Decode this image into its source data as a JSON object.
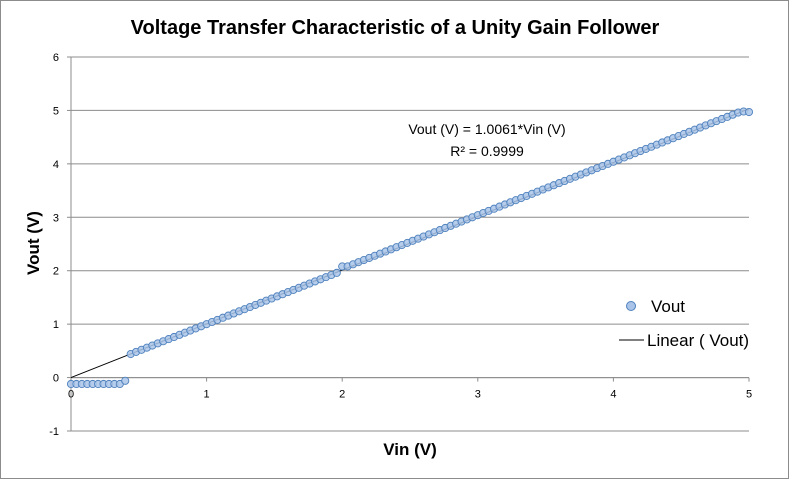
{
  "chart_data": {
    "type": "scatter",
    "title": "Voltage Transfer Characteristic of a Unity Gain Follower",
    "xlabel": "Vin (V)",
    "ylabel": "Vout (V)",
    "xlim": [
      0,
      5
    ],
    "ylim": [
      -1,
      6
    ],
    "x_ticks": [
      "0",
      "1",
      "2",
      "3",
      "4",
      "5"
    ],
    "y_ticks": [
      "-1",
      "0",
      "1",
      "2",
      "3",
      "4",
      "5",
      "6"
    ],
    "grid": "horizontal",
    "legend_position": "right",
    "series": [
      {
        "name": "Vout",
        "kind": "points",
        "color": "#a9c4e8",
        "edge_color": "#4f81bd",
        "x": [
          0.0,
          0.04,
          0.08,
          0.12,
          0.16,
          0.2,
          0.24,
          0.28,
          0.32,
          0.36,
          0.4,
          0.44,
          0.48,
          0.52,
          0.56,
          0.6,
          0.64,
          0.68,
          0.72,
          0.76,
          0.8,
          0.84,
          0.88,
          0.92,
          0.96,
          1.0,
          1.04,
          1.08,
          1.12,
          1.16,
          1.2,
          1.24,
          1.28,
          1.32,
          1.36,
          1.4,
          1.44,
          1.48,
          1.52,
          1.56,
          1.6,
          1.64,
          1.68,
          1.72,
          1.76,
          1.8,
          1.84,
          1.88,
          1.92,
          1.96,
          2.0,
          2.04,
          2.08,
          2.12,
          2.16,
          2.2,
          2.24,
          2.28,
          2.32,
          2.36,
          2.4,
          2.44,
          2.48,
          2.52,
          2.56,
          2.6,
          2.64,
          2.68,
          2.72,
          2.76,
          2.8,
          2.84,
          2.88,
          2.92,
          2.96,
          3.0,
          3.04,
          3.08,
          3.12,
          3.16,
          3.2,
          3.24,
          3.28,
          3.32,
          3.36,
          3.4,
          3.44,
          3.48,
          3.52,
          3.56,
          3.6,
          3.64,
          3.68,
          3.72,
          3.76,
          3.8,
          3.84,
          3.88,
          3.92,
          3.96,
          4.0,
          4.04,
          4.08,
          4.12,
          4.16,
          4.2,
          4.24,
          4.28,
          4.32,
          4.36,
          4.4,
          4.44,
          4.48,
          4.52,
          4.56,
          4.6,
          4.64,
          4.68,
          4.72,
          4.76,
          4.8,
          4.84,
          4.88,
          4.92,
          4.96,
          5.0
        ],
        "y": [
          -0.12,
          -0.12,
          -0.12,
          -0.12,
          -0.12,
          -0.12,
          -0.12,
          -0.12,
          -0.12,
          -0.12,
          -0.06,
          0.44,
          0.48,
          0.52,
          0.56,
          0.6,
          0.64,
          0.68,
          0.72,
          0.76,
          0.8,
          0.84,
          0.88,
          0.92,
          0.96,
          1.0,
          1.04,
          1.08,
          1.12,
          1.16,
          1.2,
          1.24,
          1.28,
          1.32,
          1.36,
          1.4,
          1.44,
          1.48,
          1.52,
          1.56,
          1.6,
          1.64,
          1.68,
          1.72,
          1.76,
          1.8,
          1.84,
          1.88,
          1.92,
          1.96,
          2.08,
          2.08,
          2.12,
          2.16,
          2.2,
          2.24,
          2.28,
          2.32,
          2.36,
          2.4,
          2.44,
          2.48,
          2.52,
          2.56,
          2.6,
          2.64,
          2.68,
          2.72,
          2.76,
          2.8,
          2.84,
          2.88,
          2.92,
          2.96,
          3.0,
          3.04,
          3.08,
          3.12,
          3.16,
          3.2,
          3.24,
          3.28,
          3.32,
          3.36,
          3.4,
          3.44,
          3.48,
          3.52,
          3.56,
          3.6,
          3.64,
          3.68,
          3.72,
          3.76,
          3.8,
          3.84,
          3.88,
          3.92,
          3.96,
          4.0,
          4.04,
          4.08,
          4.12,
          4.16,
          4.2,
          4.24,
          4.28,
          4.32,
          4.36,
          4.4,
          4.44,
          4.48,
          4.52,
          4.56,
          4.6,
          4.64,
          4.68,
          4.72,
          4.76,
          4.8,
          4.84,
          4.88,
          4.92,
          4.96,
          4.98,
          4.97
        ]
      },
      {
        "name": "Linear ( Vout)",
        "kind": "trendline",
        "color": "#000000",
        "slope": 1.0061,
        "x": [
          0,
          5
        ],
        "y": [
          0,
          5.0305
        ]
      }
    ],
    "annotations": {
      "equation": "Vout (V) = 1.0061*Vin (V)",
      "r_squared": "R² = 0.9999"
    }
  }
}
